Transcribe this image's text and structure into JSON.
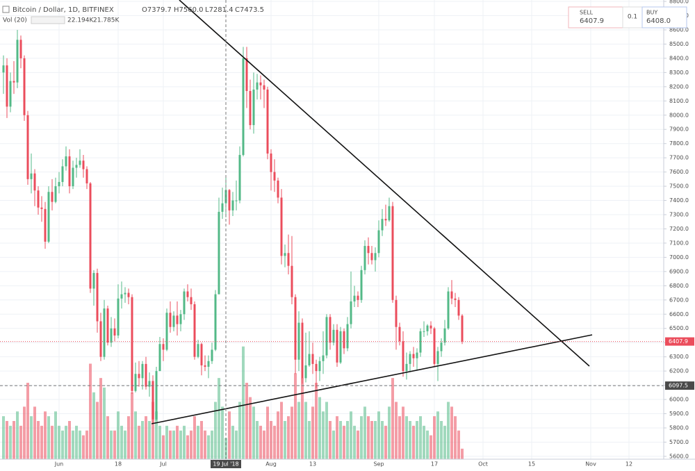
{
  "chart_data": {
    "type": "candlestick",
    "title": "Bitcoin / Dollar, 1D, BITFINEX",
    "ohlc_legend": [
      "O7379.7",
      "H7560.0",
      "L7281.4",
      "C7473.5"
    ],
    "volume_legend": [
      "Vol (20)",
      "22.194K",
      "21.785K"
    ],
    "trade_panel": {
      "sell_label": "SELL",
      "sell_price": "6407.9",
      "spread": "0.1",
      "buy_label": "BUY",
      "buy_price": "6408.0"
    },
    "crosshair": {
      "date": "2018-07-19",
      "date_label": "19 Jul '18",
      "price": 6097.5
    },
    "up_color": "#53b987",
    "down_color": "#eb4d5c",
    "xlim": [
      "2018-05-15",
      "2018-11-22"
    ],
    "ylim": [
      5580,
      8810
    ],
    "vlim": [
      0,
      120
    ],
    "grid": true,
    "xticks": [
      {
        "value": "2018-06-01",
        "label": "Jun"
      },
      {
        "value": "2018-06-18",
        "label": "18"
      },
      {
        "value": "2018-07-01",
        "label": "Jul"
      },
      {
        "value": "2018-08-01",
        "label": "Aug"
      },
      {
        "value": "2018-08-13",
        "label": "13"
      },
      {
        "value": "2018-09-01",
        "label": "Sep"
      },
      {
        "value": "2018-09-17",
        "label": "17"
      },
      {
        "value": "2018-10-01",
        "label": "Oct"
      },
      {
        "value": "2018-10-15",
        "label": "15"
      },
      {
        "value": "2018-11-01",
        "label": "Nov"
      },
      {
        "value": "2018-11-12",
        "label": "12"
      }
    ],
    "yticks": [
      {
        "value": 5600,
        "label": "5600.0"
      },
      {
        "value": 5700,
        "label": "5700.0"
      },
      {
        "value": 5800,
        "label": "5800.0"
      },
      {
        "value": 5900,
        "label": "5900.0"
      },
      {
        "value": 6000,
        "label": "6000.0"
      },
      {
        "value": 6100,
        "label": "6100.0"
      },
      {
        "value": 6200,
        "label": "6200.0"
      },
      {
        "value": 6300,
        "label": "6300.0"
      },
      {
        "value": 6400,
        "label": "6400.0"
      },
      {
        "value": 6500,
        "label": "6500.0"
      },
      {
        "value": 6600,
        "label": "6600.0"
      },
      {
        "value": 6700,
        "label": "6700.0"
      },
      {
        "value": 6800,
        "label": "6800.0"
      },
      {
        "value": 6900,
        "label": "6900.0"
      },
      {
        "value": 7000,
        "label": "7000.0"
      },
      {
        "value": 7100,
        "label": "7100.0"
      },
      {
        "value": 7200,
        "label": "7200.0"
      },
      {
        "value": 7300,
        "label": "7300.0"
      },
      {
        "value": 7400,
        "label": "7400.0"
      },
      {
        "value": 7500,
        "label": "7500.0"
      },
      {
        "value": 7600,
        "label": "7600.0"
      },
      {
        "value": 7700,
        "label": "7700.0"
      },
      {
        "value": 7800,
        "label": "7800.0"
      },
      {
        "value": 7900,
        "label": "7900.0"
      },
      {
        "value": 8000,
        "label": "8000.0"
      },
      {
        "value": 8100,
        "label": "8100.0"
      },
      {
        "value": 8200,
        "label": "8200.0"
      },
      {
        "value": 8300,
        "label": "8300.0"
      },
      {
        "value": 8400,
        "label": "8400.0"
      },
      {
        "value": 8500,
        "label": "8500.0"
      },
      {
        "value": 8600,
        "label": "8600.0"
      },
      {
        "value": 8700,
        "label": "8700.0"
      },
      {
        "value": 8800,
        "label": "8800.0"
      }
    ],
    "x": [
      "2018-05-16",
      "2018-05-17",
      "2018-05-18",
      "2018-05-19",
      "2018-05-20",
      "2018-05-21",
      "2018-05-22",
      "2018-05-23",
      "2018-05-24",
      "2018-05-25",
      "2018-05-26",
      "2018-05-27",
      "2018-05-28",
      "2018-05-29",
      "2018-05-30",
      "2018-05-31",
      "2018-06-01",
      "2018-06-02",
      "2018-06-03",
      "2018-06-04",
      "2018-06-05",
      "2018-06-06",
      "2018-06-07",
      "2018-06-08",
      "2018-06-09",
      "2018-06-10",
      "2018-06-11",
      "2018-06-12",
      "2018-06-13",
      "2018-06-14",
      "2018-06-15",
      "2018-06-16",
      "2018-06-17",
      "2018-06-18",
      "2018-06-19",
      "2018-06-20",
      "2018-06-21",
      "2018-06-22",
      "2018-06-23",
      "2018-06-24",
      "2018-06-25",
      "2018-06-26",
      "2018-06-27",
      "2018-06-28",
      "2018-06-29",
      "2018-06-30",
      "2018-07-01",
      "2018-07-02",
      "2018-07-03",
      "2018-07-04",
      "2018-07-05",
      "2018-07-06",
      "2018-07-07",
      "2018-07-08",
      "2018-07-09",
      "2018-07-10",
      "2018-07-11",
      "2018-07-12",
      "2018-07-13",
      "2018-07-14",
      "2018-07-15",
      "2018-07-16",
      "2018-07-17",
      "2018-07-18",
      "2018-07-19",
      "2018-07-20",
      "2018-07-21",
      "2018-07-22",
      "2018-07-23",
      "2018-07-24",
      "2018-07-25",
      "2018-07-26",
      "2018-07-27",
      "2018-07-28",
      "2018-07-29",
      "2018-07-30",
      "2018-07-31",
      "2018-08-01",
      "2018-08-02",
      "2018-08-03",
      "2018-08-04",
      "2018-08-05",
      "2018-08-06",
      "2018-08-07",
      "2018-08-08",
      "2018-08-09",
      "2018-08-10",
      "2018-08-11",
      "2018-08-12",
      "2018-08-13",
      "2018-08-14",
      "2018-08-15",
      "2018-08-16",
      "2018-08-17",
      "2018-08-18",
      "2018-08-19",
      "2018-08-20",
      "2018-08-21",
      "2018-08-22",
      "2018-08-23",
      "2018-08-24",
      "2018-08-25",
      "2018-08-26",
      "2018-08-27",
      "2018-08-28",
      "2018-08-29",
      "2018-08-30",
      "2018-08-31",
      "2018-09-01",
      "2018-09-02",
      "2018-09-03",
      "2018-09-04",
      "2018-09-05",
      "2018-09-06",
      "2018-09-07",
      "2018-09-08",
      "2018-09-09",
      "2018-09-10",
      "2018-09-11",
      "2018-09-12",
      "2018-09-13",
      "2018-09-14",
      "2018-09-15",
      "2018-09-16",
      "2018-09-17",
      "2018-09-18",
      "2018-09-19",
      "2018-09-20",
      "2018-09-21",
      "2018-09-22",
      "2018-09-23",
      "2018-09-24",
      "2018-09-25"
    ],
    "open": [
      8300,
      8350,
      8060,
      8240,
      8230,
      8530,
      8400,
      8000,
      7550,
      7590,
      7470,
      7350,
      7340,
      7110,
      7460,
      7390,
      7500,
      7530,
      7640,
      7710,
      7500,
      7630,
      7650,
      7680,
      7620,
      7520,
      6780,
      6890,
      6550,
      6300,
      6640,
      6400,
      6500,
      6450,
      6710,
      6740,
      6750,
      6720,
      6060,
      6180,
      6150,
      6250,
      6090,
      6130,
      5860,
      6200,
      6390,
      6350,
      6610,
      6510,
      6590,
      6530,
      6600,
      6760,
      6720,
      6670,
      6300,
      6390,
      6240,
      6230,
      6270,
      6350,
      6740,
      7320,
      7379.7,
      7473.5,
      7330,
      7400,
      7400,
      7720,
      8400,
      8170,
      7930,
      8180,
      8230,
      8210,
      8180,
      7730,
      7600,
      7540,
      7420,
      7010,
      7030,
      6940,
      6720,
      6280,
      6540,
      6150,
      6240,
      6320,
      6250,
      6200,
      6270,
      6310,
      6580,
      6400,
      6490,
      6260,
      6480,
      6360,
      6530,
      6690,
      6730,
      6700,
      6910,
      7080,
      7030,
      6980,
      7030,
      7190,
      7270,
      7260,
      7360,
      6700,
      6510,
      6410,
      6200,
      6250,
      6320,
      6290,
      6330,
      6480,
      6480,
      6520,
      6500,
      6250,
      6340,
      6400,
      6500,
      6760,
      6710,
      6700,
      6590
    ],
    "high": [
      8420,
      8400,
      8300,
      8380,
      8600,
      8560,
      8420,
      8030,
      7730,
      7620,
      7500,
      7430,
      7390,
      7500,
      7550,
      7560,
      7600,
      7690,
      7780,
      7760,
      7680,
      7700,
      7760,
      7720,
      7640,
      7530,
      6910,
      6920,
      6610,
      6700,
      6660,
      6580,
      6570,
      6810,
      6830,
      6790,
      6780,
      6740,
      6260,
      6270,
      6270,
      6300,
      6190,
      6170,
      6230,
      6440,
      6430,
      6640,
      6690,
      6620,
      6690,
      6630,
      6780,
      6810,
      6780,
      6690,
      6420,
      6400,
      6310,
      6310,
      6400,
      6770,
      7420,
      7490,
      7560,
      7480,
      7460,
      7540,
      7780,
      8480,
      8480,
      8250,
      8300,
      8290,
      8280,
      8250,
      8200,
      7760,
      7690,
      7560,
      7480,
      7090,
      7160,
      7150,
      6740,
      6620,
      6570,
      6470,
      6480,
      6400,
      6280,
      6300,
      6480,
      6600,
      6600,
      6530,
      6530,
      6510,
      6500,
      6580,
      6900,
      6800,
      6760,
      6940,
      7120,
      7140,
      7080,
      7070,
      7260,
      7340,
      7370,
      7420,
      7390,
      6730,
      6540,
      6480,
      6330,
      6340,
      6370,
      6360,
      6500,
      6550,
      6530,
      6550,
      6510,
      6370,
      6430,
      6560,
      6790,
      6840,
      6750,
      6720,
      6600
    ],
    "low": [
      8150,
      7980,
      8020,
      8150,
      8190,
      8330,
      7960,
      7510,
      7450,
      7360,
      7300,
      7250,
      7060,
      7100,
      7330,
      7380,
      7450,
      7500,
      7610,
      7450,
      7480,
      7560,
      7630,
      7560,
      7480,
      6750,
      6660,
      6470,
      6270,
      6280,
      6380,
      6370,
      6410,
      6430,
      6640,
      6680,
      6670,
      6040,
      6050,
      6090,
      6070,
      6070,
      6020,
      5830,
      5850,
      6200,
      6270,
      6340,
      6470,
      6480,
      6450,
      6480,
      6560,
      6690,
      6630,
      6280,
      6290,
      6170,
      6200,
      6150,
      6250,
      6340,
      6740,
      7270,
      7281.4,
      7230,
      7290,
      7330,
      7380,
      7710,
      8050,
      7900,
      7870,
      8110,
      8110,
      8050,
      7690,
      7470,
      7460,
      7380,
      6950,
      6930,
      6880,
      6670,
      6180,
      6200,
      6110,
      6120,
      6230,
      6180,
      6080,
      6130,
      6180,
      6290,
      6350,
      6380,
      6230,
      6250,
      6320,
      6340,
      6500,
      6650,
      6650,
      6680,
      6880,
      6950,
      6950,
      6900,
      7000,
      7150,
      7220,
      7250,
      6680,
      6350,
      6380,
      6160,
      6140,
      6200,
      6230,
      6210,
      6300,
      6440,
      6450,
      6460,
      6230,
      6130,
      6300,
      6380,
      6490,
      6670,
      6650,
      6560,
      6390
    ],
    "close": [
      8350,
      8060,
      8240,
      8230,
      8530,
      8400,
      8000,
      7550,
      7590,
      7470,
      7350,
      7340,
      7110,
      7460,
      7390,
      7500,
      7530,
      7640,
      7710,
      7500,
      7630,
      7650,
      7680,
      7620,
      7520,
      6780,
      6890,
      6550,
      6300,
      6640,
      6400,
      6500,
      6450,
      6710,
      6740,
      6750,
      6720,
      6060,
      6180,
      6150,
      6250,
      6090,
      6130,
      5860,
      6200,
      6390,
      6350,
      6610,
      6510,
      6590,
      6530,
      6600,
      6760,
      6720,
      6670,
      6300,
      6390,
      6240,
      6230,
      6270,
      6350,
      6740,
      7320,
      7379.7,
      7473.5,
      7330,
      7400,
      7400,
      7720,
      8400,
      8170,
      7930,
      8180,
      8230,
      8210,
      8180,
      7730,
      7600,
      7540,
      7420,
      7010,
      7030,
      6940,
      6720,
      6280,
      6540,
      6150,
      6240,
      6320,
      6250,
      6200,
      6270,
      6310,
      6580,
      6400,
      6490,
      6260,
      6480,
      6360,
      6530,
      6690,
      6730,
      6700,
      6910,
      7080,
      7030,
      6980,
      7030,
      7190,
      7270,
      7260,
      7360,
      6700,
      6510,
      6410,
      6200,
      6250,
      6320,
      6290,
      6330,
      6480,
      6480,
      6520,
      6500,
      6250,
      6340,
      6400,
      6500,
      6760,
      6710,
      6700,
      6590,
      6407.9
    ],
    "volume": [
      45,
      40,
      35,
      40,
      50,
      35,
      55,
      80,
      45,
      55,
      40,
      35,
      50,
      45,
      35,
      50,
      35,
      30,
      35,
      40,
      30,
      35,
      30,
      25,
      30,
      100,
      70,
      60,
      85,
      75,
      45,
      30,
      30,
      50,
      35,
      30,
      45,
      70,
      50,
      35,
      40,
      45,
      40,
      60,
      50,
      35,
      25,
      35,
      30,
      30,
      35,
      30,
      35,
      25,
      30,
      45,
      35,
      40,
      30,
      25,
      30,
      60,
      85,
      55,
      22.194,
      50,
      35,
      30,
      60,
      118,
      80,
      65,
      55,
      40,
      35,
      30,
      55,
      40,
      35,
      50,
      60,
      40,
      45,
      55,
      90,
      60,
      85,
      60,
      40,
      55,
      80,
      65,
      50,
      60,
      40,
      30,
      45,
      40,
      35,
      40,
      50,
      35,
      30,
      45,
      55,
      45,
      40,
      40,
      50,
      40,
      35,
      55,
      85,
      60,
      45,
      55,
      45,
      40,
      35,
      40,
      45,
      35,
      30,
      25,
      45,
      50,
      40,
      35,
      60,
      55,
      45,
      30,
      11
    ]
  }
}
